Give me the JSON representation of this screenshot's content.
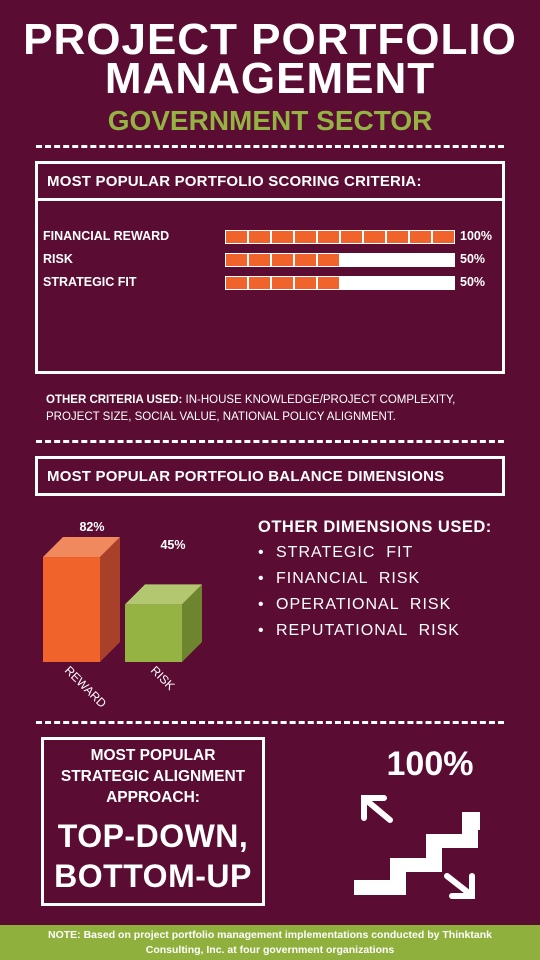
{
  "header": {
    "title_line1": "PROJECT PORTFOLIO",
    "title_line2": "MANAGEMENT",
    "subtitle": "GOVERNMENT SECTOR"
  },
  "colors": {
    "background": "#5a0c33",
    "accent_orange": "#f0632a",
    "accent_green": "#94b343",
    "white": "#ffffff"
  },
  "scoring": {
    "heading": "MOST POPULAR PORTFOLIO SCORING CRITERIA:",
    "other_label": "OTHER CRITERIA USED:",
    "other_line1_rest": " IN-HOUSE KNOWLEDGE/PROJECT COMPLEXITY,",
    "other_line2": "PROJECT SIZE, SOCIAL VALUE, NATIONAL POLICY ALIGNMENT."
  },
  "balance": {
    "heading": "MOST POPULAR PORTFOLIO BALANCE DIMENSIONS",
    "other_heading": "OTHER DIMENSIONS USED:",
    "other_items": [
      "STRATEGIC  FIT",
      "FINANCIAL  RISK",
      "OPERATIONAL  RISK",
      "REPUTATIONAL  RISK"
    ]
  },
  "approach": {
    "line1": "MOST POPULAR",
    "line2": "STRATEGIC ALIGNMENT",
    "line3": "APPROACH:",
    "big1": "TOP-DOWN,",
    "big2": "BOTTOM-UP",
    "pct": "100%",
    "icon": "stairs-up-down-icon"
  },
  "footer": {
    "line1": "NOTE: Based on project portfolio management implementations conducted by Thinktank",
    "line2": "Consulting, Inc. at four government organizations"
  },
  "chart_data": [
    {
      "type": "bar",
      "title": "MOST POPULAR PORTFOLIO SCORING CRITERIA:",
      "orientation": "horizontal",
      "categories": [
        "FINANCIAL REWARD",
        "RISK",
        "STRATEGIC FIT"
      ],
      "values": [
        100,
        50,
        50
      ],
      "value_labels": [
        "100%",
        "50%",
        "50%"
      ],
      "units": "%",
      "segments": 10,
      "xlim": [
        0,
        100
      ]
    },
    {
      "type": "bar",
      "title": "MOST POPULAR PORTFOLIO BALANCE DIMENSIONS",
      "style": "3d-column",
      "categories": [
        "REWARD",
        "RISK"
      ],
      "values": [
        82,
        45
      ],
      "value_labels": [
        "82%",
        "45%"
      ],
      "units": "%",
      "ylim": [
        0,
        100
      ]
    }
  ]
}
